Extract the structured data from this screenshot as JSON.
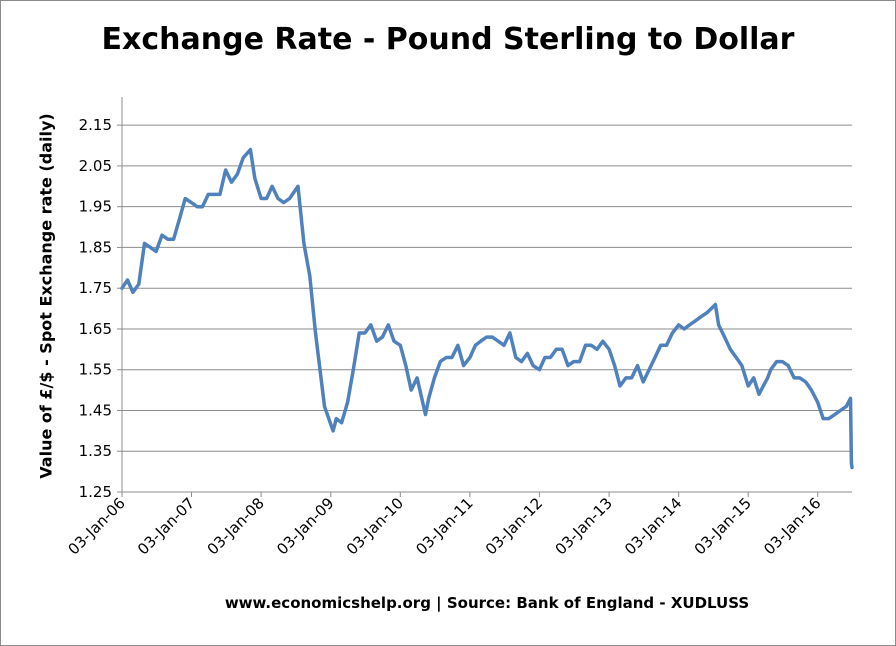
{
  "chart_data": {
    "type": "line",
    "title": "Exchange Rate - Pound Sterling to Dollar",
    "ylabel": "Value of £/$ - Spot Exchange rate (daily)",
    "xlabel": "",
    "source": "www.economicshelp.org | Source: Bank of England - XUDLUSS",
    "ylim": [
      1.25,
      2.17
    ],
    "yticks": [
      1.25,
      1.35,
      1.45,
      1.55,
      1.65,
      1.75,
      1.85,
      1.95,
      2.05,
      2.15
    ],
    "ytick_labels": [
      "1.25",
      "1.35",
      "1.45",
      "1.55",
      "1.65",
      "1.75",
      "1.85",
      "1.95",
      "2.05",
      "2.15"
    ],
    "xlim": [
      "2006-01-03",
      "2016-07-01"
    ],
    "xticks": [
      "2006-01-03",
      "2007-01-03",
      "2008-01-03",
      "2009-01-03",
      "2010-01-03",
      "2011-01-03",
      "2012-01-03",
      "2013-01-03",
      "2014-01-03",
      "2015-01-03",
      "2016-01-03"
    ],
    "xtick_labels": [
      "03-Jan-06",
      "03-Jan-07",
      "03-Jan-08",
      "03-Jan-09",
      "03-Jan-10",
      "03-Jan-11",
      "03-Jan-12",
      "03-Jan-13",
      "03-Jan-14",
      "03-Jan-15",
      "03-Jan-16"
    ],
    "grid": true,
    "legend": "none",
    "line_color": "#4f81bd",
    "series": [
      {
        "x": [
          "2006-01-03",
          "2006-02-01",
          "2006-03-01",
          "2006-04-01",
          "2006-05-01",
          "2006-06-01",
          "2006-07-01",
          "2006-08-01",
          "2006-09-01",
          "2006-10-01",
          "2006-11-01",
          "2006-12-01",
          "2007-01-03",
          "2007-02-01",
          "2007-03-01",
          "2007-04-01",
          "2007-05-01",
          "2007-06-01",
          "2007-07-01",
          "2007-08-01",
          "2007-09-01",
          "2007-10-01",
          "2007-11-08",
          "2007-12-01",
          "2008-01-03",
          "2008-02-01",
          "2008-03-01",
          "2008-04-01",
          "2008-05-01",
          "2008-06-01",
          "2008-07-15",
          "2008-08-15",
          "2008-09-15",
          "2008-10-15",
          "2008-11-15",
          "2008-12-01",
          "2009-01-15",
          "2009-02-01",
          "2009-03-01",
          "2009-04-01",
          "2009-05-01",
          "2009-06-01",
          "2009-07-01",
          "2009-08-01",
          "2009-09-01",
          "2009-10-01",
          "2009-11-01",
          "2009-12-01",
          "2010-01-03",
          "2010-02-01",
          "2010-03-01",
          "2010-04-01",
          "2010-05-15",
          "2010-06-01",
          "2010-07-01",
          "2010-08-01",
          "2010-09-01",
          "2010-10-01",
          "2010-11-01",
          "2010-12-01",
          "2011-01-03",
          "2011-02-01",
          "2011-03-01",
          "2011-04-01",
          "2011-05-01",
          "2011-06-01",
          "2011-07-01",
          "2011-08-01",
          "2011-09-01",
          "2011-10-01",
          "2011-11-01",
          "2011-12-01",
          "2012-01-03",
          "2012-02-01",
          "2012-03-01",
          "2012-04-01",
          "2012-05-01",
          "2012-06-01",
          "2012-07-01",
          "2012-08-01",
          "2012-09-01",
          "2012-10-01",
          "2012-11-01",
          "2012-12-01",
          "2013-01-03",
          "2013-02-01",
          "2013-03-01",
          "2013-04-01",
          "2013-05-01",
          "2013-06-01",
          "2013-07-01",
          "2013-08-01",
          "2013-09-01",
          "2013-10-01",
          "2013-11-01",
          "2013-12-01",
          "2014-01-03",
          "2014-02-01",
          "2014-03-01",
          "2014-04-01",
          "2014-05-01",
          "2014-06-01",
          "2014-07-15",
          "2014-08-01",
          "2014-09-01",
          "2014-10-01",
          "2014-11-01",
          "2014-12-01",
          "2015-01-03",
          "2015-02-01",
          "2015-03-01",
          "2015-04-15",
          "2015-05-01",
          "2015-06-01",
          "2015-07-01",
          "2015-08-01",
          "2015-09-01",
          "2015-10-01",
          "2015-11-01",
          "2015-12-01",
          "2016-01-03",
          "2016-02-01",
          "2016-03-01",
          "2016-04-01",
          "2016-05-01",
          "2016-06-01",
          "2016-06-23",
          "2016-06-28",
          "2016-07-01"
        ],
        "y": [
          1.75,
          1.77,
          1.74,
          1.76,
          1.86,
          1.85,
          1.84,
          1.88,
          1.87,
          1.87,
          1.92,
          1.97,
          1.96,
          1.95,
          1.95,
          1.98,
          1.98,
          1.98,
          2.04,
          2.01,
          2.03,
          2.07,
          2.09,
          2.02,
          1.97,
          1.97,
          2.0,
          1.97,
          1.96,
          1.97,
          2.0,
          1.86,
          1.78,
          1.64,
          1.52,
          1.46,
          1.4,
          1.43,
          1.42,
          1.47,
          1.55,
          1.64,
          1.64,
          1.66,
          1.62,
          1.63,
          1.66,
          1.62,
          1.61,
          1.56,
          1.5,
          1.53,
          1.44,
          1.48,
          1.53,
          1.57,
          1.58,
          1.58,
          1.61,
          1.56,
          1.58,
          1.61,
          1.62,
          1.63,
          1.63,
          1.62,
          1.61,
          1.64,
          1.58,
          1.57,
          1.59,
          1.56,
          1.55,
          1.58,
          1.58,
          1.6,
          1.6,
          1.56,
          1.57,
          1.57,
          1.61,
          1.61,
          1.6,
          1.62,
          1.6,
          1.56,
          1.51,
          1.53,
          1.53,
          1.56,
          1.52,
          1.55,
          1.58,
          1.61,
          1.61,
          1.64,
          1.66,
          1.65,
          1.66,
          1.67,
          1.68,
          1.69,
          1.71,
          1.66,
          1.63,
          1.6,
          1.58,
          1.56,
          1.51,
          1.53,
          1.49,
          1.53,
          1.55,
          1.57,
          1.57,
          1.56,
          1.53,
          1.53,
          1.52,
          1.5,
          1.47,
          1.43,
          1.43,
          1.44,
          1.45,
          1.46,
          1.48,
          1.32,
          1.31
        ]
      }
    ]
  }
}
